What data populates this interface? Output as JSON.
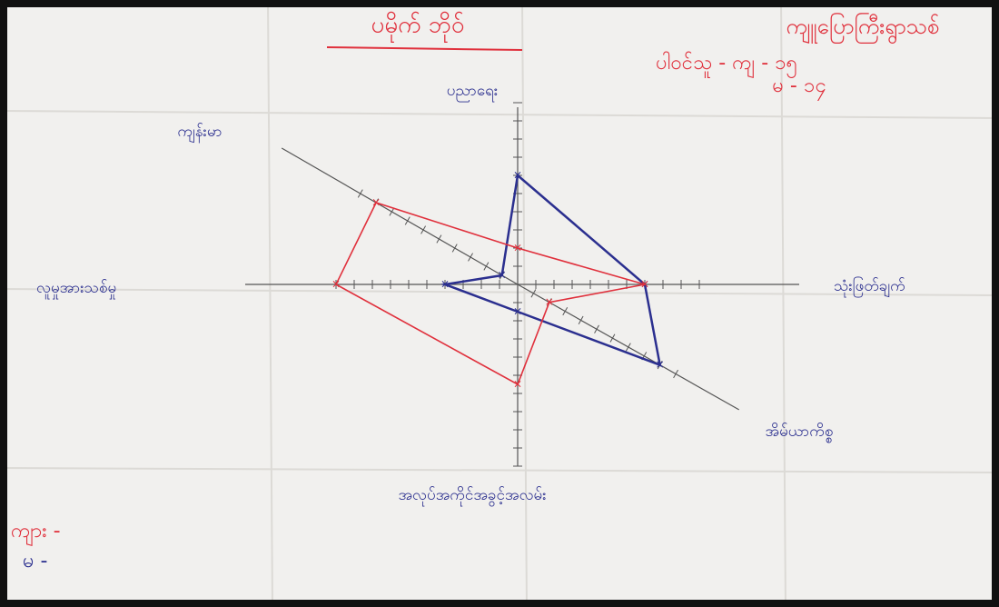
{
  "chart_data": {
    "type": "radar",
    "title": "ပမိုက် ဘိုဝ်",
    "subtitle": "ကျူပြောကြီးရွာသစ်",
    "annotations": [
      "ပါဝင်သူ - ကျ - ၁၅",
      "မ - ၁၄",
      "ကျား -",
      "မ -"
    ],
    "categories": [
      "ပညာရေး",
      "သုံးဖြတ်ချက်",
      "အိမ်ယာကိစ္စ",
      "အလုပ်အကိုင်အခွင့်အလမ်း",
      "လူမှုအားသစ်မှု",
      "ကျန်းမာ"
    ],
    "series": [
      {
        "color": "#2b2f8f",
        "values": [
          6,
          7,
          9,
          1.5,
          4,
          1
        ]
      },
      {
        "color": "#e0303c",
        "values": [
          2,
          7,
          2,
          5.5,
          10,
          9
        ]
      }
    ],
    "rlim": [
      0,
      10
    ],
    "rticks": [
      1,
      2,
      3,
      4,
      5,
      6,
      7,
      8,
      9,
      10
    ]
  }
}
